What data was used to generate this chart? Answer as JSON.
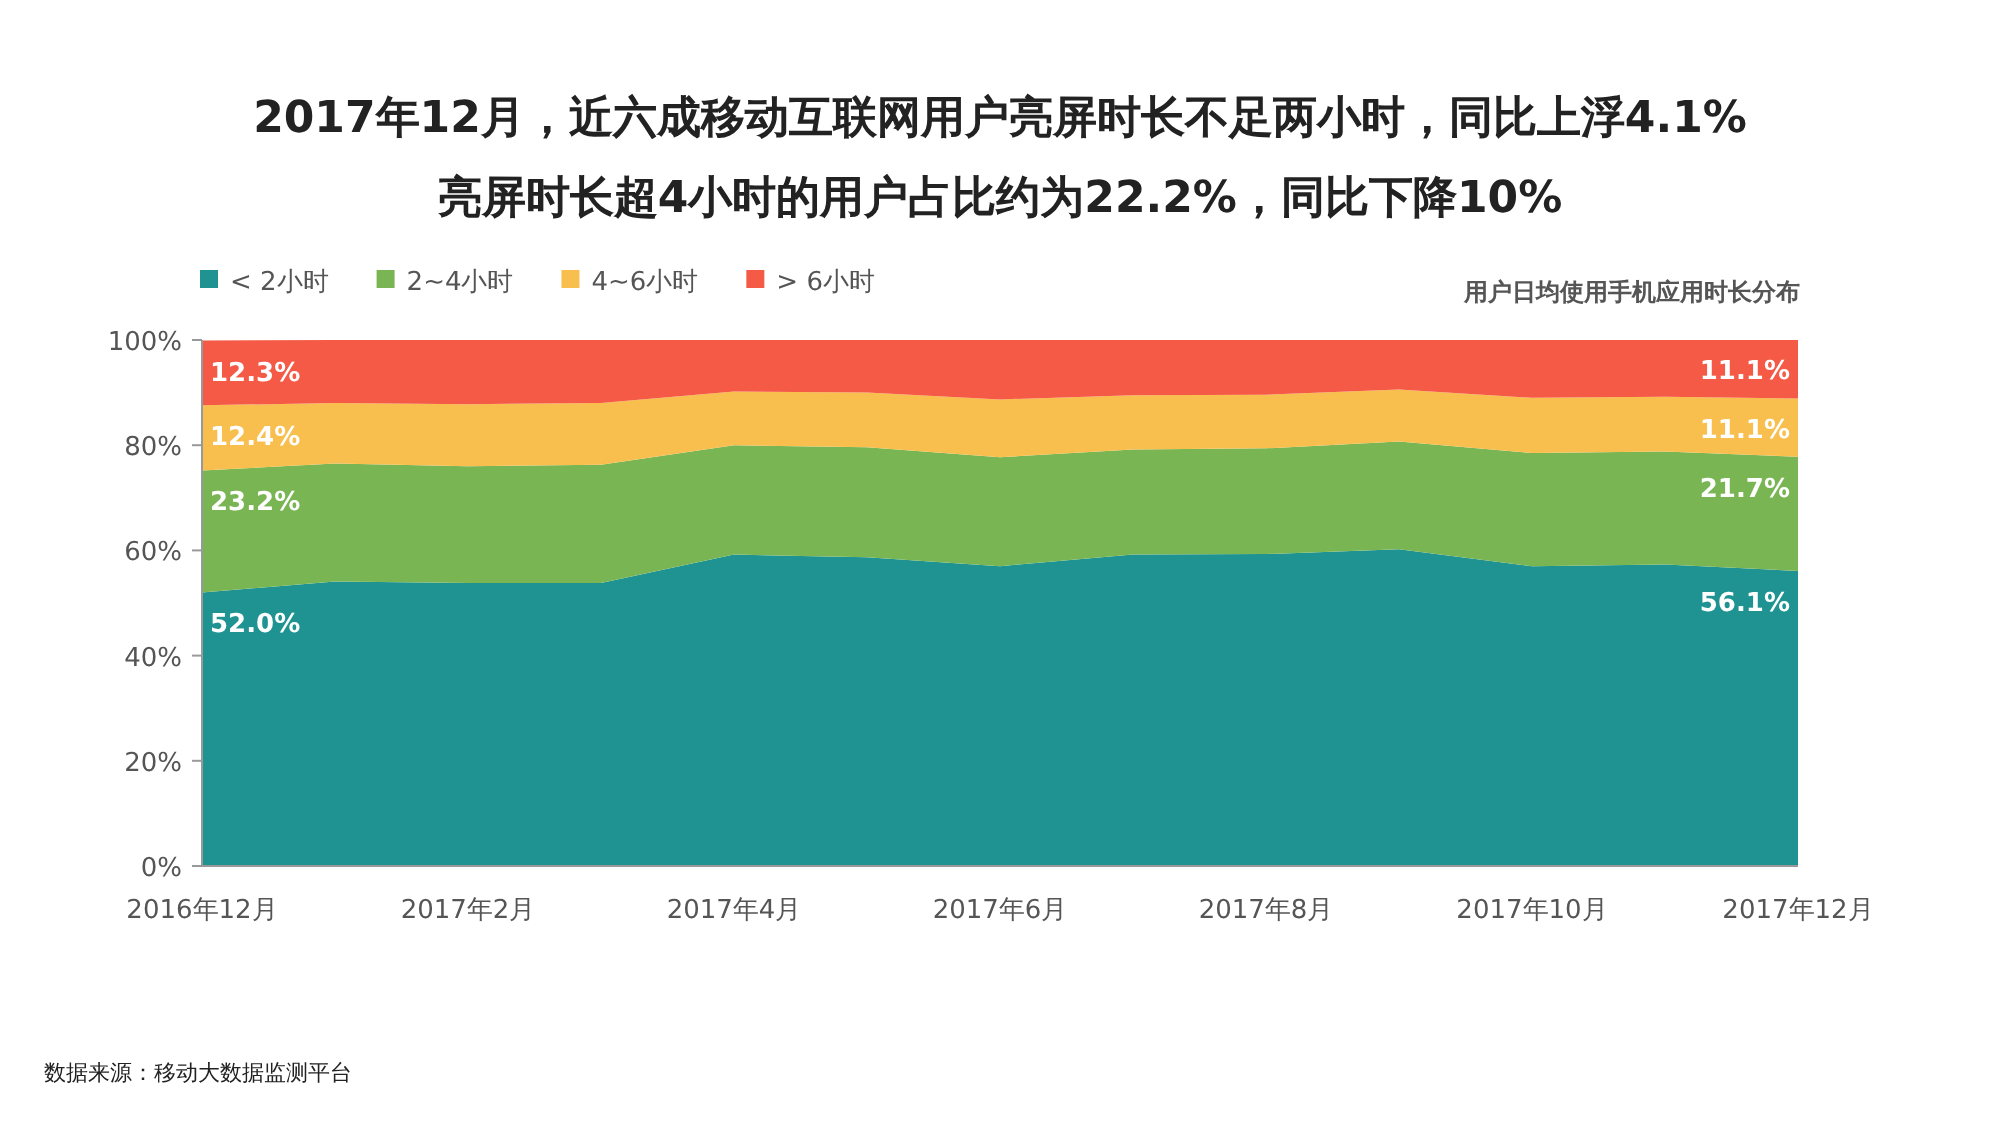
{
  "chart_data": {
    "type": "area",
    "stacked": true,
    "title": "2017年12月，近六成移动互联网用户亮屏时长不足两小时，同比上浮4.1%",
    "subtitle": "亮屏时长超4小时的用户占比约为22.2%，同比下降10%",
    "categories": [
      "2016年12月",
      null,
      "2017年2月",
      null,
      "2017年4月",
      null,
      "2017年6月",
      null,
      "2017年8月",
      null,
      "2017年10月",
      null,
      "2017年12月"
    ],
    "series": [
      {
        "name": "< 2小时",
        "color": "#1e9391",
        "values": [
          52.0,
          54.1,
          53.8,
          53.8,
          59.2,
          58.7,
          57.0,
          59.2,
          59.3,
          60.2,
          57.0,
          57.3,
          56.1
        ],
        "value_labels": [
          "52.0%",
          null,
          null,
          null,
          null,
          null,
          null,
          null,
          null,
          null,
          null,
          null,
          "56.1%"
        ]
      },
      {
        "name": "2~4小时",
        "color": "#7ab554",
        "values": [
          23.2,
          22.4,
          22.2,
          22.5,
          20.8,
          20.9,
          20.7,
          20.0,
          20.1,
          20.5,
          21.5,
          21.5,
          21.7
        ],
        "value_labels": [
          "23.2%",
          null,
          null,
          null,
          null,
          null,
          null,
          null,
          null,
          null,
          null,
          null,
          "21.7%"
        ]
      },
      {
        "name": "4~6小时",
        "color": "#f8bf4f",
        "values": [
          12.4,
          11.5,
          11.8,
          11.7,
          10.2,
          10.4,
          11.0,
          10.3,
          10.2,
          9.9,
          10.5,
          10.4,
          11.1
        ],
        "value_labels": [
          "12.4%",
          null,
          null,
          null,
          null,
          null,
          null,
          null,
          null,
          null,
          null,
          null,
          "11.1%"
        ]
      },
      {
        "name": "> 6小时",
        "color": "#f55a47",
        "values": [
          12.3,
          12.0,
          12.2,
          12.0,
          9.8,
          10.0,
          11.3,
          10.5,
          10.4,
          9.4,
          11.0,
          10.8,
          11.1
        ],
        "value_labels": [
          "12.3%",
          null,
          null,
          null,
          null,
          null,
          null,
          null,
          null,
          null,
          null,
          null,
          "11.1%"
        ]
      }
    ],
    "ylim": [
      0,
      100
    ],
    "yticks": [
      {
        "value": 0,
        "label": "0%"
      },
      {
        "value": 20,
        "label": "20%"
      },
      {
        "value": 40,
        "label": "40%"
      },
      {
        "value": 60,
        "label": "60%"
      },
      {
        "value": 80,
        "label": "80%"
      },
      {
        "value": 100,
        "label": "100%"
      }
    ],
    "legend": "top left",
    "annotations": [
      "用户日均使用手机应用时长分布",
      "数据来源：移动大数据监测平台"
    ]
  }
}
